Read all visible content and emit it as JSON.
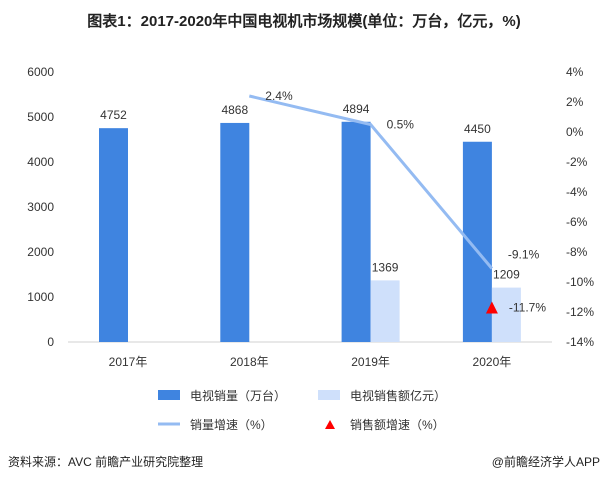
{
  "title": "图表1：2017-2020年中国电视机市场规模(单位：万台，亿元，%)",
  "footer": {
    "source": "资料来源：AVC 前瞻产业研究院整理",
    "brand": "@前瞻经济学人APP"
  },
  "colors": {
    "sales_volume": "#3f84e0",
    "sales_amount": "#cfe0fb",
    "volume_growth": "#94bbf2",
    "amount_growth": "#ff0000"
  },
  "chart_data": {
    "type": "bar",
    "title": "图表1：2017-2020年中国电视机市场规模(单位：万台，亿元，%)",
    "categories": [
      "2017年",
      "2018年",
      "2019年",
      "2020年"
    ],
    "left_axis": {
      "ylim": [
        0,
        6000
      ],
      "ticks": [
        "0",
        "1000",
        "2000",
        "3000",
        "4000",
        "5000",
        "6000"
      ]
    },
    "right_axis": {
      "ylim": [
        -14,
        4
      ],
      "ticks": [
        "-14%",
        "-12%",
        "-10%",
        "-8%",
        "-6%",
        "-4%",
        "-2%",
        "0%",
        "2%",
        "4%"
      ]
    },
    "series": [
      {
        "name": "电视销量（万台）",
        "type": "bar",
        "axis": "left",
        "values": [
          4752,
          4868,
          4894,
          4450
        ],
        "labels": [
          "4752",
          "4868",
          "4894",
          "4450"
        ]
      },
      {
        "name": "电视销售额亿元）",
        "type": "bar",
        "axis": "left",
        "values": [
          null,
          null,
          1369,
          1209
        ],
        "labels": [
          "",
          "",
          "1369",
          "1209"
        ]
      },
      {
        "name": "销量增速（%）",
        "type": "line",
        "axis": "right",
        "values": [
          null,
          2.4,
          0.5,
          -9.1
        ],
        "labels": [
          "",
          "2.4%",
          "0.5%",
          "-9.1%"
        ]
      },
      {
        "name": "销售额增速（%）",
        "type": "scatter",
        "axis": "right",
        "values": [
          null,
          null,
          null,
          -11.7
        ],
        "labels": [
          "",
          "",
          "",
          "-11.7%"
        ]
      }
    ]
  }
}
